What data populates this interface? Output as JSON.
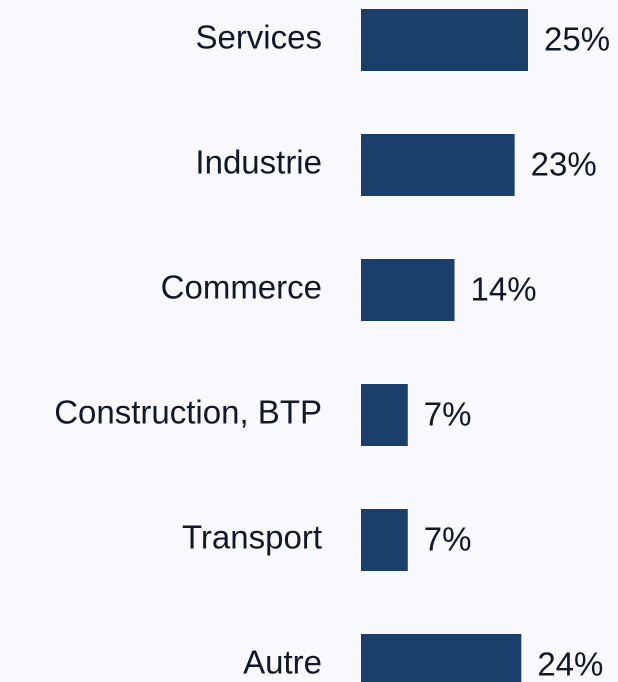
{
  "chart_data": {
    "type": "hbar",
    "categories": [
      "Services",
      "Industrie",
      "Commerce",
      "Construction, BTP",
      "Transport",
      "Autre"
    ],
    "values": [
      25,
      23,
      14,
      7,
      7,
      24
    ],
    "value_labels": [
      "25%",
      "23%",
      "14%",
      "7%",
      "7%",
      "24%"
    ],
    "color": "#1a3f6b"
  }
}
